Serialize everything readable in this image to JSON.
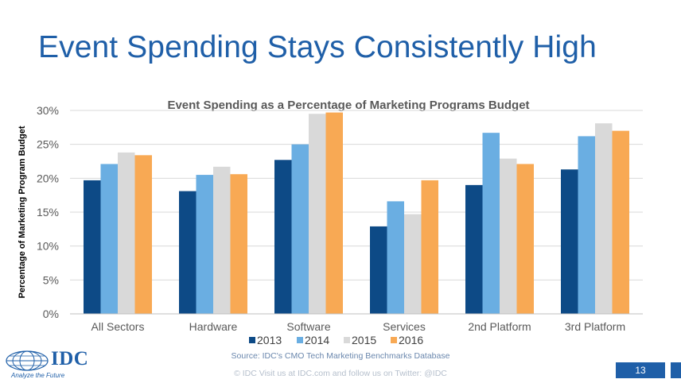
{
  "slide": {
    "title": "Event Spending Stays Consistently High",
    "source": "Source: IDC's CMO Tech Marketing Benchmarks Database",
    "copyright": "© IDC Visit us at IDC.com and follow us on Twitter: @IDC",
    "page_number": "13",
    "logo_text": "IDC",
    "logo_tagline": "Analyze the Future"
  },
  "colors": {
    "title": "#1f5fa8",
    "grid": "#d9d9d9",
    "axis_text": "#595959"
  },
  "chart_data": {
    "type": "bar",
    "title": "Event Spending as a Percentage of Marketing Programs Budget",
    "xlabel": "",
    "ylabel": "Percentage of Marketing Program Budget",
    "ylim": [
      0,
      30
    ],
    "yticks": [
      0,
      5,
      10,
      15,
      20,
      25,
      30
    ],
    "ytick_labels": [
      "0%",
      "5%",
      "10%",
      "15%",
      "20%",
      "25%",
      "30%"
    ],
    "grid": true,
    "legend_position": "bottom",
    "categories": [
      "All Sectors",
      "Hardware",
      "Software",
      "Services",
      "2nd Platform",
      "3rd Platform"
    ],
    "series": [
      {
        "name": "2013",
        "color": "#0d4a86",
        "values": [
          19.7,
          18.1,
          22.7,
          12.9,
          19.0,
          21.3
        ]
      },
      {
        "name": "2014",
        "color": "#6aaee2",
        "values": [
          22.1,
          20.5,
          25.0,
          16.6,
          26.7,
          26.2
        ]
      },
      {
        "name": "2015",
        "color": "#d9d9d9",
        "values": [
          23.8,
          21.7,
          29.5,
          14.7,
          22.9,
          28.1
        ]
      },
      {
        "name": "2016",
        "color": "#f8a954",
        "values": [
          23.4,
          20.6,
          29.7,
          19.7,
          22.1,
          27.0
        ]
      }
    ]
  }
}
